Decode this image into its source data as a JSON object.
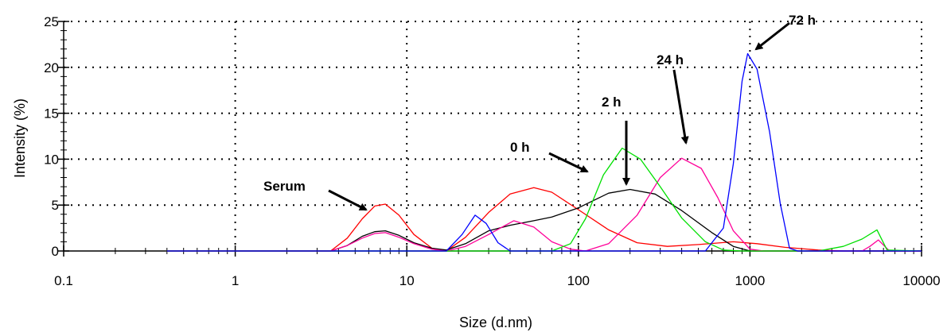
{
  "chart_data": {
    "type": "line",
    "xlabel": "Size (d.nm)",
    "ylabel": "Intensity (%)",
    "xscale": "log",
    "xlim": [
      0.1,
      10000
    ],
    "ylim": [
      0,
      25
    ],
    "grid": true,
    "x_ticks": [
      {
        "value": 0.1,
        "label": "0.1"
      },
      {
        "value": 1,
        "label": "1"
      },
      {
        "value": 10,
        "label": "10"
      },
      {
        "value": 100,
        "label": "100"
      },
      {
        "value": 1000,
        "label": "1000"
      },
      {
        "value": 10000,
        "label": "10000"
      }
    ],
    "y_ticks": [
      {
        "value": 0,
        "label": "0"
      },
      {
        "value": 5,
        "label": "5"
      },
      {
        "value": 10,
        "label": "10"
      },
      {
        "value": 15,
        "label": "15"
      },
      {
        "value": 20,
        "label": "20"
      },
      {
        "value": 25,
        "label": "25"
      }
    ],
    "series": [
      {
        "color": "#ff0000",
        "points": [
          [
            0.4,
            0
          ],
          [
            3.6,
            0
          ],
          [
            4.5,
            1.4
          ],
          [
            5.5,
            3.5
          ],
          [
            6.5,
            4.9
          ],
          [
            7.5,
            5.1
          ],
          [
            9,
            3.9
          ],
          [
            11,
            1.8
          ],
          [
            14,
            0.3
          ],
          [
            17,
            0
          ],
          [
            22,
            1.5
          ],
          [
            30,
            4.2
          ],
          [
            40,
            6.2
          ],
          [
            55,
            6.9
          ],
          [
            70,
            6.4
          ],
          [
            100,
            4.5
          ],
          [
            150,
            2.3
          ],
          [
            220,
            0.9
          ],
          [
            330,
            0.5
          ],
          [
            500,
            0.7
          ],
          [
            800,
            1.0
          ],
          [
            1100,
            0.8
          ],
          [
            1600,
            0.4
          ],
          [
            2500,
            0.1
          ],
          [
            3500,
            0
          ],
          [
            10000,
            0
          ]
        ]
      },
      {
        "color": "#000000",
        "points": [
          [
            0.4,
            0
          ],
          [
            3.6,
            0
          ],
          [
            4.5,
            0.6
          ],
          [
            5.5,
            1.6
          ],
          [
            6.5,
            2.1
          ],
          [
            7.5,
            2.2
          ],
          [
            9,
            1.7
          ],
          [
            11,
            0.9
          ],
          [
            14,
            0.3
          ],
          [
            17,
            0.1
          ],
          [
            22,
            0.8
          ],
          [
            30,
            2.2
          ],
          [
            40,
            2.8
          ],
          [
            55,
            3.3
          ],
          [
            70,
            3.7
          ],
          [
            100,
            4.7
          ],
          [
            150,
            6.3
          ],
          [
            200,
            6.7
          ],
          [
            280,
            6.2
          ],
          [
            400,
            4.4
          ],
          [
            600,
            2.0
          ],
          [
            800,
            0.5
          ],
          [
            1000,
            0
          ],
          [
            10000,
            0
          ]
        ]
      },
      {
        "color": "#ff0099",
        "points": [
          [
            0.4,
            0
          ],
          [
            3.6,
            0
          ],
          [
            4.5,
            0.6
          ],
          [
            5.5,
            1.4
          ],
          [
            6.5,
            1.9
          ],
          [
            7.5,
            2.0
          ],
          [
            9,
            1.5
          ],
          [
            11,
            0.8
          ],
          [
            14,
            0.2
          ],
          [
            17,
            0
          ],
          [
            22,
            0.5
          ],
          [
            30,
            1.8
          ],
          [
            42,
            3.3
          ],
          [
            55,
            2.6
          ],
          [
            70,
            1.0
          ],
          [
            90,
            0.2
          ],
          [
            110,
            0
          ],
          [
            150,
            0.8
          ],
          [
            220,
            3.9
          ],
          [
            300,
            8.0
          ],
          [
            400,
            10.1
          ],
          [
            520,
            9.0
          ],
          [
            650,
            5.8
          ],
          [
            800,
            2.2
          ],
          [
            1000,
            0.2
          ],
          [
            1200,
            0
          ],
          [
            4500,
            0
          ],
          [
            5000,
            0.5
          ],
          [
            5600,
            1.2
          ],
          [
            6500,
            0
          ],
          [
            10000,
            0
          ]
        ]
      },
      {
        "color": "#00e000",
        "points": [
          [
            0.4,
            0
          ],
          [
            70,
            0
          ],
          [
            90,
            0.8
          ],
          [
            110,
            3.5
          ],
          [
            140,
            8.3
          ],
          [
            180,
            11.2
          ],
          [
            230,
            10.0
          ],
          [
            300,
            7.0
          ],
          [
            400,
            3.6
          ],
          [
            550,
            1.0
          ],
          [
            700,
            0.1
          ],
          [
            900,
            0
          ],
          [
            2500,
            0
          ],
          [
            3500,
            0.5
          ],
          [
            4500,
            1.3
          ],
          [
            5500,
            2.3
          ],
          [
            6300,
            0.1
          ],
          [
            10000,
            0
          ]
        ]
      },
      {
        "color": "#0000ff",
        "points": [
          [
            0.4,
            0
          ],
          [
            17,
            0
          ],
          [
            21,
            1.8
          ],
          [
            25,
            3.9
          ],
          [
            29,
            3.0
          ],
          [
            34,
            0.9
          ],
          [
            40,
            0
          ],
          [
            550,
            0
          ],
          [
            700,
            2.5
          ],
          [
            800,
            9.5
          ],
          [
            900,
            18.5
          ],
          [
            970,
            21.5
          ],
          [
            1100,
            19.8
          ],
          [
            1300,
            13.0
          ],
          [
            1500,
            5.2
          ],
          [
            1700,
            0.3
          ],
          [
            1900,
            0
          ],
          [
            10000,
            0
          ]
        ]
      }
    ],
    "annotations": [
      {
        "text": "Serum"
      },
      {
        "text": "0 h"
      },
      {
        "text": "2 h"
      },
      {
        "text": "24 h"
      },
      {
        "text": "72 h"
      }
    ]
  }
}
